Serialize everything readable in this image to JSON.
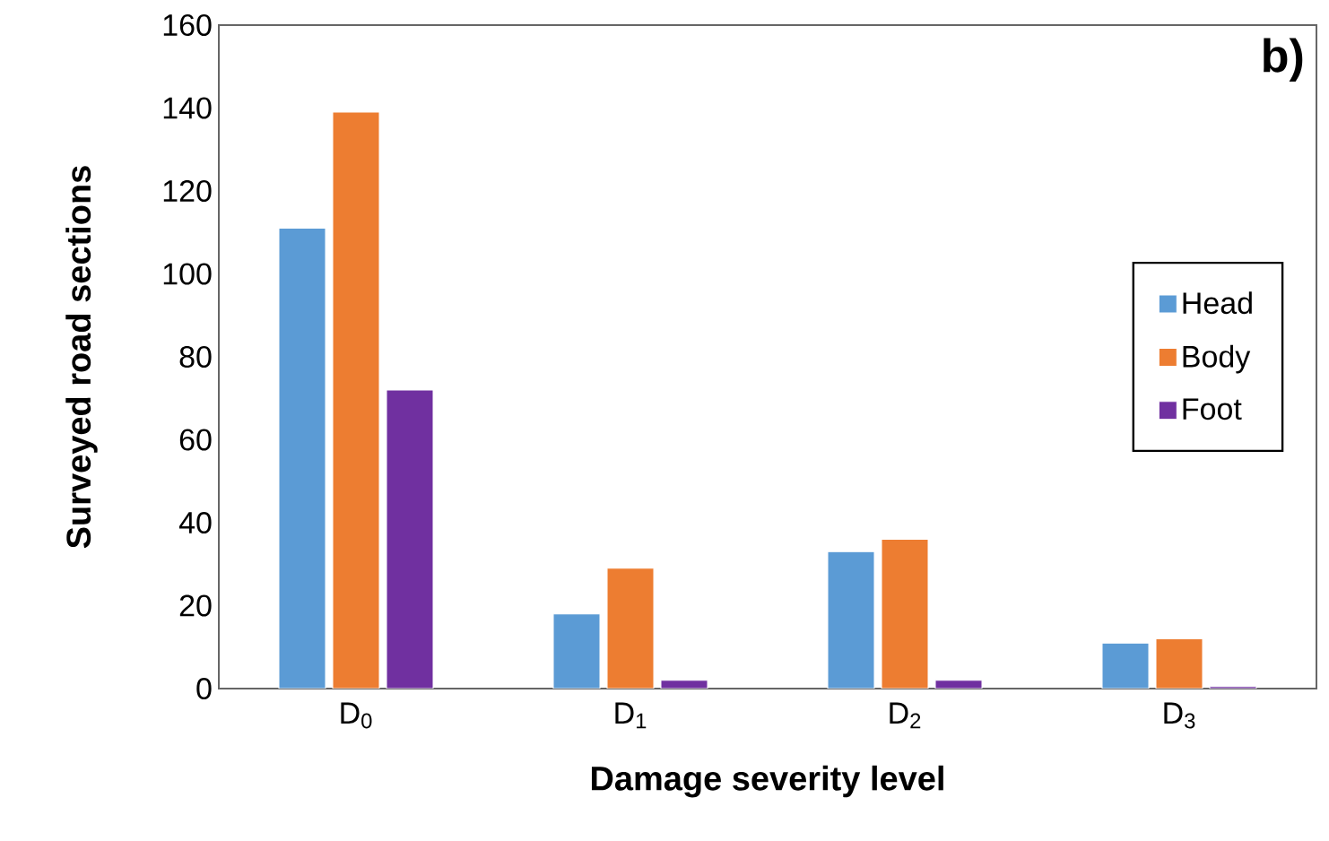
{
  "chart_data": {
    "type": "bar",
    "xlabel": "Damage severity level",
    "ylabel": "Surveyed road sections",
    "annotations": [
      "b)"
    ],
    "categories": [
      "D$_{0}$",
      "D$_{1}$",
      "D$_{2}$",
      "D$_{3}$"
    ],
    "series": [
      {
        "name": "Head",
        "color": "#5b9bd5",
        "values": [
          111,
          18,
          33,
          11
        ]
      },
      {
        "name": "Body",
        "color": "#ed7d31",
        "values": [
          139,
          29,
          36,
          12
        ]
      },
      {
        "name": "Foot",
        "color": "#7030a0",
        "values": [
          72,
          2,
          2,
          0.5
        ]
      }
    ],
    "ylim": [
      0,
      160
    ],
    "yticks": [
      0,
      20,
      40,
      60,
      80,
      100,
      120,
      140,
      160
    ],
    "grid": false,
    "legend": "right"
  }
}
